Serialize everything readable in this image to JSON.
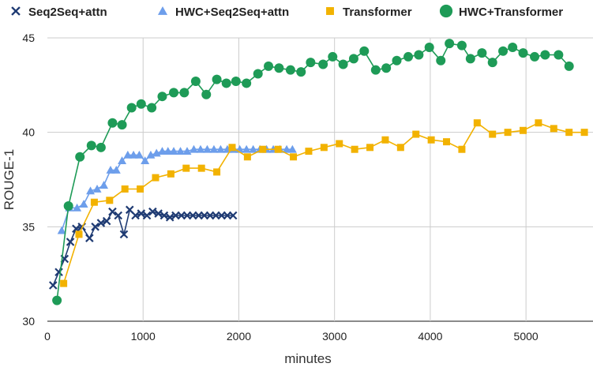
{
  "chart_data": {
    "type": "line",
    "title": "",
    "xlabel": "minutes",
    "ylabel": "ROUGE-1",
    "xlim": [
      0,
      5700
    ],
    "ylim": [
      30,
      45
    ],
    "xticks": [
      0,
      1000,
      2000,
      3000,
      4000,
      5000
    ],
    "yticks": [
      30,
      35,
      40,
      45
    ],
    "xtick_labels": [
      "0",
      "1000",
      "2000",
      "3000",
      "4000",
      "5000"
    ],
    "ytick_labels": [
      "30",
      "35",
      "40",
      "45"
    ],
    "grid": true,
    "legend_position": "top",
    "series": [
      {
        "name": "Seq2Seq+attn",
        "color": "#1f3b73",
        "marker": "x",
        "x": [
          60,
          120,
          180,
          240,
          300,
          360,
          440,
          500,
          560,
          620,
          680,
          740,
          800,
          860,
          920,
          980,
          1040,
          1100,
          1160,
          1220,
          1280,
          1340,
          1400,
          1460,
          1520,
          1580,
          1640,
          1700,
          1760,
          1820,
          1880,
          1940
        ],
        "y": [
          31.9,
          32.6,
          33.3,
          34.2,
          34.9,
          35.0,
          34.4,
          35.0,
          35.2,
          35.3,
          35.8,
          35.6,
          34.6,
          35.9,
          35.6,
          35.7,
          35.6,
          35.8,
          35.7,
          35.6,
          35.5,
          35.6,
          35.6,
          35.6,
          35.6,
          35.6,
          35.6,
          35.6,
          35.6,
          35.6,
          35.6,
          35.6
        ]
      },
      {
        "name": "HWC+Seq2Seq+attn",
        "color": "#6d9eeb",
        "marker": "triangle",
        "x": [
          150,
          230,
          310,
          380,
          450,
          520,
          590,
          660,
          720,
          780,
          840,
          900,
          960,
          1020,
          1080,
          1140,
          1200,
          1260,
          1320,
          1390,
          1460,
          1530,
          1600,
          1670,
          1740,
          1810,
          1880,
          1950,
          2010,
          2080,
          2150,
          2220,
          2290,
          2360,
          2430,
          2500,
          2560
        ],
        "y": [
          34.8,
          36.0,
          36.0,
          36.2,
          36.9,
          37.0,
          37.2,
          38.0,
          38.0,
          38.5,
          38.8,
          38.8,
          38.8,
          38.5,
          38.8,
          38.9,
          39.0,
          39.0,
          39.0,
          39.0,
          39.0,
          39.1,
          39.1,
          39.1,
          39.1,
          39.1,
          39.1,
          39.1,
          39.1,
          39.1,
          39.1,
          39.1,
          39.1,
          39.1,
          39.1,
          39.1,
          39.1
        ]
      },
      {
        "name": "Transformer",
        "color": "#f2b200",
        "marker": "square",
        "x": [
          170,
          330,
          490,
          650,
          810,
          970,
          1130,
          1290,
          1450,
          1610,
          1770,
          1930,
          2090,
          2250,
          2410,
          2570,
          2730,
          2890,
          3050,
          3210,
          3370,
          3530,
          3690,
          3850,
          4010,
          4170,
          4330,
          4490,
          4650,
          4810,
          4970,
          5130,
          5290,
          5450,
          5610
        ],
        "y": [
          32.0,
          34.6,
          36.3,
          36.4,
          37.0,
          37.0,
          37.6,
          37.8,
          38.1,
          38.1,
          37.9,
          39.2,
          38.7,
          39.1,
          39.1,
          38.7,
          39.0,
          39.2,
          39.4,
          39.1,
          39.2,
          39.6,
          39.2,
          39.9,
          39.6,
          39.5,
          39.1,
          40.5,
          39.9,
          40.0,
          40.1,
          40.5,
          40.2,
          40.0,
          40.0
        ]
      },
      {
        "name": "HWC+Transformer",
        "color": "#1e9b57",
        "marker": "circle",
        "x": [
          100,
          220,
          340,
          460,
          560,
          680,
          780,
          880,
          980,
          1090,
          1200,
          1320,
          1430,
          1550,
          1660,
          1770,
          1870,
          1970,
          2080,
          2200,
          2310,
          2420,
          2540,
          2650,
          2750,
          2880,
          2980,
          3090,
          3200,
          3310,
          3430,
          3540,
          3650,
          3770,
          3880,
          3990,
          4110,
          4200,
          4330,
          4420,
          4540,
          4650,
          4760,
          4860,
          4970,
          5090,
          5200,
          5340,
          5450
        ],
        "y": [
          31.1,
          36.1,
          38.7,
          39.3,
          39.2,
          40.5,
          40.4,
          41.3,
          41.5,
          41.3,
          41.9,
          42.1,
          42.1,
          42.7,
          42.0,
          42.8,
          42.6,
          42.7,
          42.6,
          43.1,
          43.5,
          43.4,
          43.3,
          43.2,
          43.7,
          43.6,
          44.0,
          43.6,
          43.9,
          44.3,
          43.3,
          43.4,
          43.8,
          44.0,
          44.1,
          44.5,
          43.8,
          44.7,
          44.6,
          43.9,
          44.2,
          43.7,
          44.3,
          44.5,
          44.2,
          44.0,
          44.1,
          44.1,
          43.5
        ]
      }
    ]
  }
}
